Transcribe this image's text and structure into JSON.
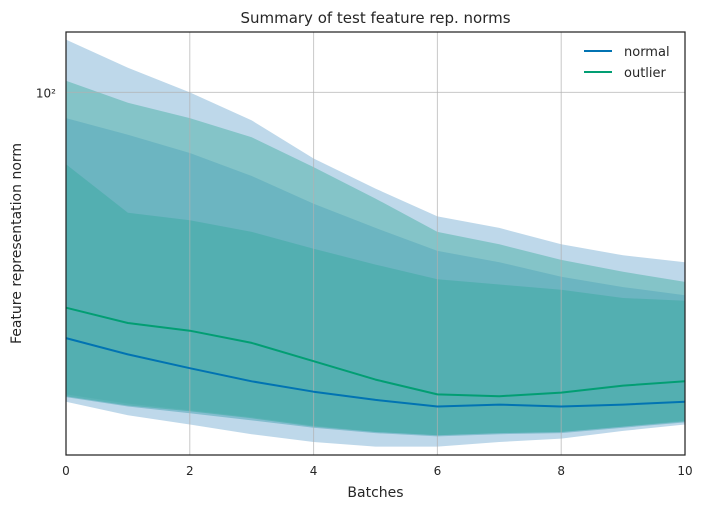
{
  "chart_data": {
    "type": "line",
    "title": "Summary of test feature rep. norms",
    "xlabel": "Batches",
    "ylabel": "Feature representation norm",
    "xlim": [
      0,
      10
    ],
    "ylim": [
      16.5,
      135
    ],
    "yscale": "log",
    "x": [
      0,
      1,
      2,
      3,
      4,
      5,
      6,
      7,
      8,
      9,
      10
    ],
    "x_ticks": [
      0,
      2,
      4,
      6,
      8,
      10
    ],
    "y_ticks": [
      100
    ],
    "y_tick_labels": [
      "10²"
    ],
    "grid": true,
    "legend": "top-right",
    "series": [
      {
        "name": "normal",
        "color": "#0173b2",
        "band_color": "#6fa8d1",
        "values": [
          29.5,
          27.2,
          25.4,
          23.8,
          22.6,
          21.7,
          21.0,
          21.2,
          21.0,
          21.2,
          21.5
        ],
        "upper": [
          130.0,
          113.0,
          100.0,
          87.0,
          72.0,
          62.0,
          54.0,
          51.0,
          47.0,
          44.5,
          43.0
        ],
        "lower": [
          21.5,
          20.1,
          19.2,
          18.3,
          17.6,
          17.2,
          17.2,
          17.6,
          17.9,
          18.6,
          19.2
        ]
      },
      {
        "name": "outlier",
        "color": "#029e73",
        "band_color": "#3fae9f",
        "values": [
          34.3,
          31.8,
          30.6,
          28.8,
          26.3,
          24.0,
          22.3,
          22.1,
          22.5,
          23.3,
          23.8
        ],
        "upper": [
          106.0,
          95.0,
          88.0,
          80.0,
          69.0,
          59.0,
          50.0,
          47.0,
          43.5,
          41.0,
          39.0
        ],
        "lower": [
          22.3,
          21.3,
          20.6,
          19.9,
          19.1,
          18.5,
          18.2,
          18.4,
          18.5,
          19.0,
          19.6
        ]
      }
    ],
    "inner_bands": [
      {
        "color": "#5cabbd",
        "upper": [
          88.0,
          81.0,
          74.0,
          66.0,
          57.5,
          51.0,
          45.5,
          43.0,
          40.0,
          38.0,
          36.5
        ],
        "lower": [
          22.0,
          21.0,
          20.3,
          19.6,
          18.9,
          18.4,
          18.1,
          18.3,
          18.4,
          18.9,
          19.4
        ]
      },
      {
        "color": "#43aca6",
        "upper": [
          70.0,
          55.0,
          53.0,
          50.0,
          46.0,
          42.5,
          39.5,
          38.5,
          37.5,
          36.0,
          35.5
        ],
        "lower": [
          22.1,
          21.1,
          20.5,
          19.8,
          19.0,
          18.5,
          18.2,
          18.4,
          18.5,
          19.0,
          19.5
        ]
      }
    ]
  }
}
